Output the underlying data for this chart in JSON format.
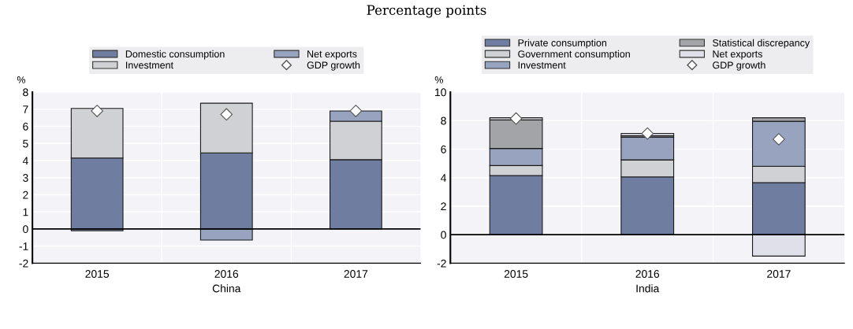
{
  "chart_data": [
    {
      "type": "bar",
      "subtitle": "Percentage points",
      "xlabel": "China",
      "ylabel": "%",
      "categories": [
        "2015",
        "2016",
        "2017"
      ],
      "stacked": true,
      "ylim": [
        -2,
        8
      ],
      "yticks": [
        -2,
        -1,
        0,
        1,
        2,
        3,
        4,
        5,
        6,
        7,
        8
      ],
      "grid": "y",
      "legend": "top",
      "series": [
        {
          "name": "Domestic consumption",
          "color": "#6f7ea0",
          "values": [
            4.15,
            4.45,
            4.05
          ]
        },
        {
          "name": "Investment",
          "color": "#d0d1d4",
          "values": [
            2.9,
            2.9,
            2.25
          ]
        },
        {
          "name": "Net exports",
          "color": "#97a3bf",
          "values": [
            -0.1,
            -0.65,
            0.6
          ]
        },
        {
          "name": "GDP growth",
          "type": "scatter",
          "marker": "diamond",
          "color": "#ffffff",
          "values": [
            6.9,
            6.7,
            6.9
          ]
        }
      ]
    },
    {
      "type": "bar",
      "xlabel": "India",
      "ylabel": "%",
      "categories": [
        "2015",
        "2016",
        "2017"
      ],
      "stacked": true,
      "ylim": [
        -2,
        10
      ],
      "yticks": [
        -2,
        0,
        2,
        4,
        6,
        8,
        10
      ],
      "grid": "y",
      "legend": "top",
      "series": [
        {
          "name": "Private consumption",
          "color": "#6f7ea0",
          "values": [
            4.15,
            4.05,
            3.65
          ]
        },
        {
          "name": "Government consumption",
          "color": "#d0d1d4",
          "values": [
            0.7,
            1.2,
            1.15
          ]
        },
        {
          "name": "Investment",
          "color": "#97a3bf",
          "values": [
            1.2,
            1.6,
            3.15
          ]
        },
        {
          "name": "Statistical discrepancy",
          "color": "#a3a4a8",
          "values": [
            2.0,
            0.1,
            0.25
          ]
        },
        {
          "name": "Net exports",
          "color": "#e0e0ea",
          "values": [
            0.15,
            0.15,
            -1.5
          ]
        },
        {
          "name": "GDP growth",
          "type": "scatter",
          "marker": "diamond",
          "color": "#ffffff",
          "values": [
            8.15,
            7.1,
            6.7
          ]
        }
      ]
    }
  ]
}
